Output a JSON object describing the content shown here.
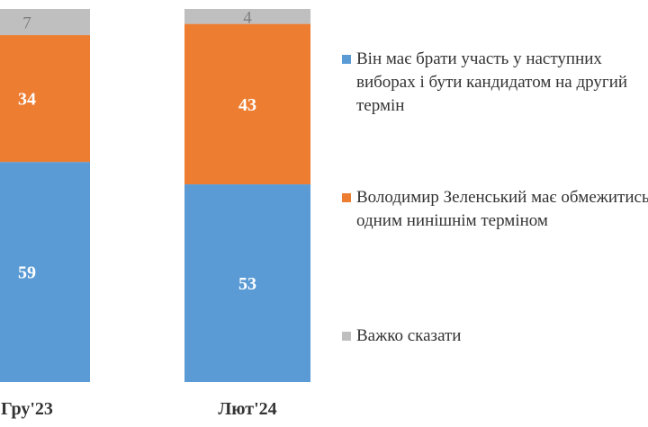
{
  "chart_data": {
    "type": "bar",
    "stacked": true,
    "percent_stacked": true,
    "categories": [
      "Гру'23",
      "Лют'24"
    ],
    "series": [
      {
        "name": "Він має брати участь у наступних виборах і бути кандидатом на другий термін",
        "values": [
          59,
          53
        ],
        "color": "#5b9bd5",
        "legend_lines": [
          "Він має брати участь у наступних",
          "виборах і бути кандидатом на другий",
          "термін"
        ]
      },
      {
        "name": "Володимир Зеленський має обмежитись одним нинішнім терміном",
        "values": [
          34,
          43
        ],
        "color": "#ed7d31",
        "legend_lines": [
          "Володимир Зеленський має обмежитись",
          "одним нинішнім терміном"
        ]
      },
      {
        "name": "Важко сказати",
        "values": [
          7,
          4
        ],
        "color": "#bfbfbf",
        "legend_lines": [
          "Важко сказати"
        ]
      }
    ],
    "data_label_colors": [
      "#ffffff",
      "#ffffff",
      "#7f7f7f"
    ],
    "ylim": [
      0,
      100
    ],
    "legend_position": "right",
    "grid": false
  }
}
